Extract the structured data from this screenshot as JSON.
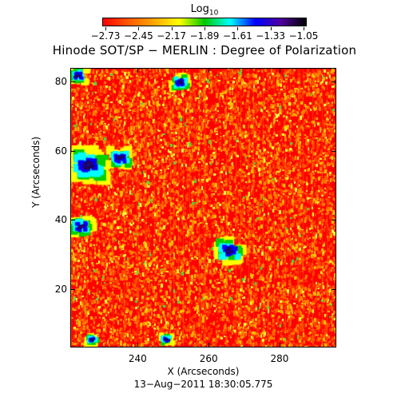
{
  "colorbar": {
    "title": "Log",
    "title_sub": "10",
    "tick_labels": [
      "−2.73",
      "−2.45",
      "−2.17",
      "−1.89",
      "−1.61",
      "−1.33",
      "−1.05"
    ],
    "min": -2.73,
    "max": -1.05,
    "colormap": [
      "#ff0000",
      "#ff5a00",
      "#ffa500",
      "#ffff00",
      "#00c800",
      "#00ffff",
      "#0000ff",
      "#5000a0",
      "#000000"
    ]
  },
  "title": "Hinode SOT/SP − MERLIN : Degree of Polarization",
  "x_axis": {
    "label": "X (Arcseconds)",
    "ticks": [
      "240",
      "260",
      "280"
    ],
    "range": [
      221,
      296
    ]
  },
  "y_axis": {
    "label": "Y (Arcseconds)",
    "ticks": [
      "20",
      "40",
      "60",
      "80"
    ],
    "range": [
      3,
      84
    ]
  },
  "timestamp": "13−Aug−2011 18:30:05.775",
  "image": {
    "background": "#ff0000",
    "speckle_colors": [
      "#ff4000",
      "#ff8000",
      "#ffc000",
      "#ffff40",
      "#40e040"
    ],
    "features": [
      {
        "name": "patch-upper-left",
        "x": 223,
        "y": 82,
        "size": 2
      },
      {
        "name": "patch-left-large",
        "x": 226,
        "y": 56,
        "size": 4
      },
      {
        "name": "patch-left-mid",
        "x": 224,
        "y": 38,
        "size": 2.5
      },
      {
        "name": "patch-center",
        "x": 266,
        "y": 31,
        "size": 3
      },
      {
        "name": "patch-top-center",
        "x": 252,
        "y": 80,
        "size": 2
      },
      {
        "name": "patch-bottom-left",
        "x": 227,
        "y": 5,
        "size": 1.5
      },
      {
        "name": "patch-bottom-center",
        "x": 248,
        "y": 5,
        "size": 1.5
      },
      {
        "name": "patch-left-60",
        "x": 235,
        "y": 58,
        "size": 2.5
      }
    ]
  }
}
